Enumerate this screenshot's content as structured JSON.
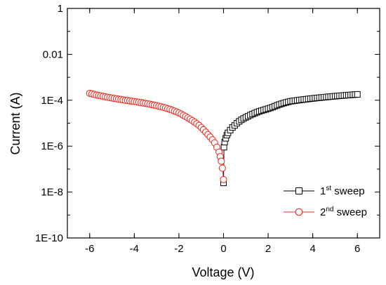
{
  "chart_data": {
    "type": "scatter",
    "title": "",
    "xlabel": "Voltage (V)",
    "ylabel": "Current (A)",
    "xlim": [
      -7,
      7
    ],
    "ylim": [
      1e-10,
      1
    ],
    "y_scale": "log",
    "grid": false,
    "legend_position": "bottom-right",
    "x_ticks": [
      -6,
      -4,
      -2,
      0,
      2,
      4,
      6
    ],
    "x_tick_labels": [
      "-6",
      "-4",
      "-2",
      "0",
      "2",
      "4",
      "6"
    ],
    "y_ticks": [
      1e-10,
      1e-08,
      1e-06,
      0.0001,
      0.01,
      1
    ],
    "y_tick_labels": [
      "1E-10",
      "1E-8",
      "1E-6",
      "1E-4",
      "0.01",
      "1"
    ],
    "series": [
      {
        "name": "1st sweep",
        "label_base": "1",
        "label_sup": "st",
        "label_rest": " sweep",
        "color": "#000000",
        "marker": "square",
        "x": [
          0,
          0.02,
          0.05,
          0.1,
          0.15,
          0.2,
          0.3,
          0.4,
          0.5,
          0.6,
          0.7,
          0.8,
          0.9,
          1.0,
          1.1,
          1.2,
          1.3,
          1.4,
          1.5,
          1.6,
          1.7,
          1.8,
          1.9,
          2.0,
          2.1,
          2.2,
          2.3,
          2.4,
          2.5,
          2.6,
          2.7,
          2.8,
          2.9,
          3.0,
          3.1,
          3.2,
          3.3,
          3.4,
          3.5,
          3.6,
          3.7,
          3.8,
          3.9,
          4.0,
          4.1,
          4.2,
          4.3,
          4.4,
          4.5,
          4.6,
          4.7,
          4.8,
          4.9,
          5.0,
          5.1,
          5.2,
          5.3,
          5.4,
          5.5,
          5.6,
          5.7,
          5.8,
          5.9,
          6.0
        ],
        "y": [
          2.5e-08,
          9e-07,
          1.5e-06,
          2.2e-06,
          3e-06,
          3.8e-06,
          5e-06,
          6.5e-06,
          8e-06,
          1e-05,
          1.2e-05,
          1.4e-05,
          1.6e-05,
          1.8e-05,
          2e-05,
          2.25e-05,
          2.5e-05,
          2.75e-05,
          3e-05,
          3.25e-05,
          3.5e-05,
          3.75e-05,
          4e-05,
          4.3e-05,
          4.6e-05,
          5e-05,
          5.5e-05,
          6e-05,
          6.5e-05,
          7e-05,
          7.5e-05,
          8e-05,
          8.5e-05,
          9e-05,
          9.3e-05,
          9.6e-05,
          9.9e-05,
          0.000102,
          0.000105,
          0.000108,
          0.000111,
          0.000114,
          0.000117,
          0.00012,
          0.000123,
          0.000126,
          0.000129,
          0.000132,
          0.000135,
          0.000138,
          0.000141,
          0.000144,
          0.000147,
          0.00015,
          0.000153,
          0.000156,
          0.000159,
          0.000162,
          0.000165,
          0.000168,
          0.000171,
          0.000174,
          0.000177,
          0.00018
        ]
      },
      {
        "name": "2nd sweep",
        "label_base": "2",
        "label_sup": "nd",
        "label_rest": " sweep",
        "color": "#e8352a",
        "marker": "circle",
        "x": [
          -6.0,
          -5.9,
          -5.8,
          -5.7,
          -5.6,
          -5.5,
          -5.4,
          -5.3,
          -5.2,
          -5.1,
          -5.0,
          -4.9,
          -4.8,
          -4.7,
          -4.6,
          -4.5,
          -4.4,
          -4.3,
          -4.2,
          -4.1,
          -4.0,
          -3.9,
          -3.8,
          -3.7,
          -3.6,
          -3.5,
          -3.4,
          -3.3,
          -3.2,
          -3.1,
          -3.0,
          -2.9,
          -2.8,
          -2.7,
          -2.6,
          -2.5,
          -2.4,
          -2.3,
          -2.2,
          -2.1,
          -2.0,
          -1.9,
          -1.8,
          -1.7,
          -1.6,
          -1.5,
          -1.4,
          -1.3,
          -1.2,
          -1.1,
          -1.0,
          -0.9,
          -0.8,
          -0.7,
          -0.6,
          -0.5,
          -0.4,
          -0.3,
          -0.2,
          -0.15,
          -0.1,
          -0.05,
          0.0
        ],
        "y": [
          0.0002,
          0.00019,
          0.00018,
          0.00017,
          0.000162,
          0.000155,
          0.000148,
          0.000142,
          0.000136,
          0.00013,
          0.000125,
          0.00012,
          0.000116,
          0.000112,
          0.000108,
          0.000104,
          0.0001,
          9.7e-05,
          9.4e-05,
          9.1e-05,
          8.8e-05,
          8.5e-05,
          8.2e-05,
          7.9e-05,
          7.6e-05,
          7.3e-05,
          7e-05,
          6.7e-05,
          6.4e-05,
          6.1e-05,
          5.8e-05,
          5.5e-05,
          5.2e-05,
          4.9e-05,
          4.6e-05,
          4.3e-05,
          4e-05,
          3.7e-05,
          3.4e-05,
          3.1e-05,
          2.8e-05,
          2.5e-05,
          2.2e-05,
          1.95e-05,
          1.7e-05,
          1.5e-05,
          1.3e-05,
          1.12e-05,
          9.5e-06,
          8e-06,
          6.5e-06,
          5.2e-06,
          4.1e-06,
          3.2e-06,
          2.5e-06,
          1.9e-06,
          1.4e-06,
          9e-07,
          5.5e-07,
          3.5e-07,
          2.2e-07,
          1.1e-07,
          3.5e-08
        ]
      }
    ]
  }
}
